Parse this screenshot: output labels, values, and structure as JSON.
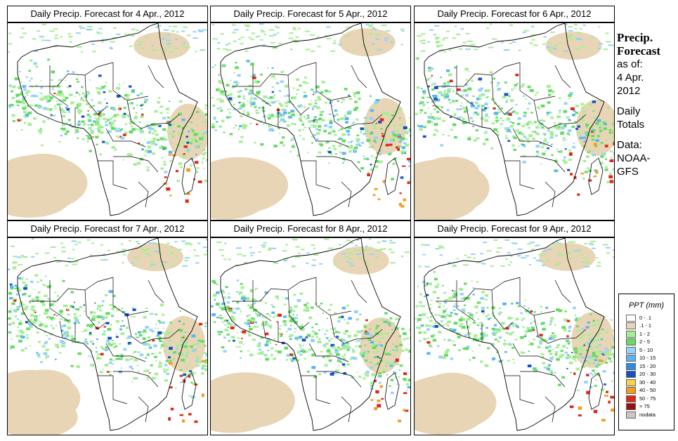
{
  "panels": [
    {
      "title": "Daily Precip. Forecast for  4 Apr., 2012"
    },
    {
      "title": "Daily Precip. Forecast for  5 Apr., 2012"
    },
    {
      "title": "Daily Precip. Forecast for  6 Apr., 2012"
    },
    {
      "title": "Daily Precip. Forecast for  7 Apr., 2012"
    },
    {
      "title": "Daily Precip. Forecast for  8 Apr., 2012"
    },
    {
      "title": "Daily Precip. Forecast for  9 Apr., 2012"
    }
  ],
  "side": {
    "title1": "Precip.",
    "title2": "Forecast",
    "asof": "as of:",
    "date1": "4 Apr.",
    "date2": "2012",
    "daily": "Daily",
    "totals": "Totals",
    "data": "Data:",
    "src1": "NOAA-",
    "src2": "GFS"
  },
  "legend": {
    "title": "PPT (mm)",
    "items": [
      {
        "label": "0 - .1",
        "color": "#ffffff"
      },
      {
        "label": ".1 - 1",
        "color": "#e8d5b5"
      },
      {
        "label": "1 - 2",
        "color": "#a6ee96"
      },
      {
        "label": "2 - 5",
        "color": "#62dc62"
      },
      {
        "label": "5 - 10",
        "color": "#96d2fa"
      },
      {
        "label": "10 - 15",
        "color": "#5ab4f0"
      },
      {
        "label": "15 - 20",
        "color": "#2f8be0"
      },
      {
        "label": "20 - 30",
        "color": "#1450c8"
      },
      {
        "label": "30 - 40",
        "color": "#f5d250"
      },
      {
        "label": "40 - 50",
        "color": "#f59b1e"
      },
      {
        "label": "50 - 75",
        "color": "#dc2814"
      },
      {
        "label": "> 75",
        "color": "#9b0f0a"
      },
      {
        "label": "nodata",
        "color": "#c8c8c8"
      }
    ]
  }
}
